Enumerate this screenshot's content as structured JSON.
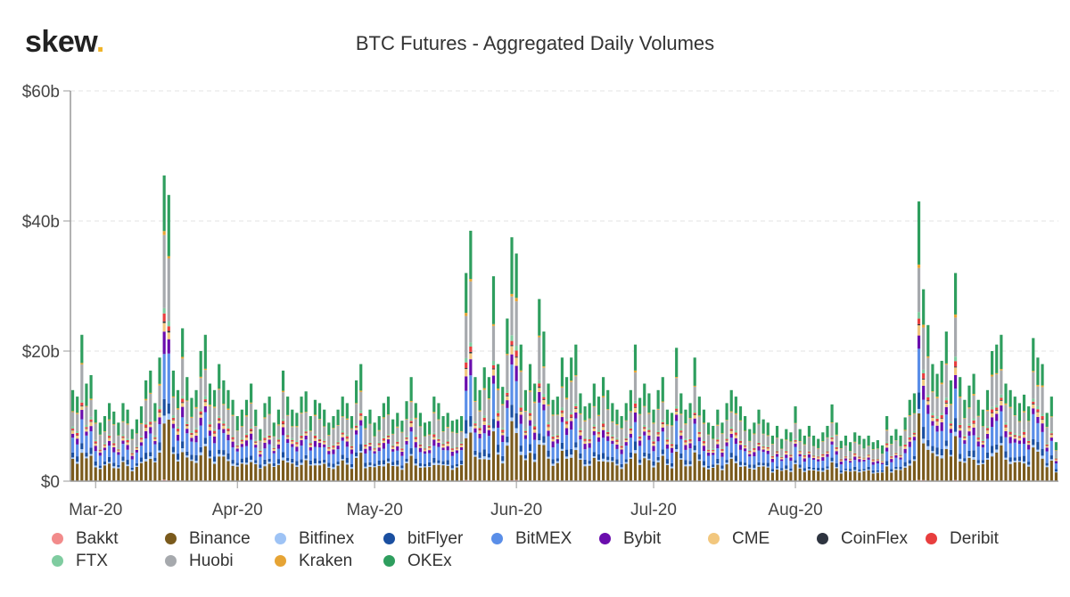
{
  "logo": {
    "text": "skew",
    "dot": "."
  },
  "chart_data": {
    "type": "bar",
    "stacked": true,
    "title": "BTC Futures - Aggregated Daily Volumes",
    "xlabel": "",
    "ylabel": "",
    "ylim": [
      0,
      60
    ],
    "unit": "$b",
    "yticks": [
      {
        "value": 0,
        "label": "$0"
      },
      {
        "value": 20,
        "label": "$20b"
      },
      {
        "value": 40,
        "label": "$40b"
      },
      {
        "value": 60,
        "label": "$60b"
      }
    ],
    "xticks": [
      {
        "index": 5,
        "label": "Mar-20"
      },
      {
        "index": 36,
        "label": "Apr-20"
      },
      {
        "index": 66,
        "label": "May-20"
      },
      {
        "index": 97,
        "label": "Jun-20"
      },
      {
        "index": 127,
        "label": "Jul-20"
      },
      {
        "index": 158,
        "label": "Aug-20"
      }
    ],
    "start_date": "2020-02-24",
    "totals": [
      14,
      13,
      22.5,
      15,
      16.3,
      11,
      9,
      10,
      12,
      10.7,
      9,
      12,
      11,
      8,
      9.5,
      11.5,
      15.5,
      17,
      12,
      19,
      47,
      44,
      17,
      14,
      23.5,
      16,
      12.8,
      14,
      20,
      22.5,
      15,
      14,
      18,
      15.5,
      14,
      12.5,
      10,
      11,
      12.5,
      15,
      11,
      8,
      12,
      13,
      9,
      11,
      17,
      13,
      11,
      10.5,
      13,
      13.8,
      10,
      12.5,
      12,
      11,
      9,
      10,
      11,
      13,
      12,
      10,
      15.5,
      18,
      10,
      11,
      9,
      10,
      12,
      13,
      9.5,
      10.5,
      9.3,
      12.3,
      16,
      12,
      10.5,
      9,
      9.2,
      13,
      12,
      10,
      10.5,
      9.3,
      9.5,
      10,
      32,
      38.5,
      16,
      14,
      17.5,
      16,
      31.5,
      18,
      14.5,
      25,
      37.5,
      35,
      21,
      14,
      18,
      15,
      28,
      23,
      15,
      12.5,
      13,
      19,
      16,
      19,
      21,
      13.5,
      11.5,
      12,
      15,
      13,
      16,
      14,
      12,
      11,
      10,
      12,
      14,
      21,
      12.8,
      15,
      13.5,
      11,
      14,
      16,
      11,
      10.5,
      20.5,
      13.5,
      11,
      12,
      19,
      13,
      11,
      9,
      8.5,
      11,
      9,
      12,
      14,
      13,
      11.5,
      10,
      8,
      9,
      11,
      9.5,
      9,
      7,
      8.5,
      6.5,
      8,
      7.5,
      11.5,
      8,
      7,
      8.5,
      7,
      6.5,
      7.5,
      8.5,
      11.8,
      9,
      6.2,
      7,
      6,
      7.5,
      7,
      6.5,
      7,
      6,
      6.3,
      5.5,
      10,
      7,
      8,
      7,
      9.8,
      12.5,
      13.5,
      43,
      29.5,
      24,
      18,
      16.5,
      18.5,
      23,
      15.5,
      32,
      16,
      12.5,
      14.7,
      16.5,
      12.5,
      11,
      14,
      20,
      21,
      22.5,
      15,
      14,
      13,
      12,
      13.3,
      11.5,
      22,
      19,
      18,
      10.5,
      13,
      6
    ],
    "series": [
      {
        "name": "Bakkt",
        "color": "#f28b8b",
        "share": 0.004
      },
      {
        "name": "Binance",
        "color": "#7a5a1c",
        "share": 0.215
      },
      {
        "name": "Bitfinex",
        "color": "#9ec3f5",
        "share": 0.02
      },
      {
        "name": "bitFlyer",
        "color": "#1a4fa0",
        "share": 0.05
      },
      {
        "name": "BitMEX",
        "color": "#5a8ee8",
        "share": 0.16
      },
      {
        "name": "Bybit",
        "color": "#6a0dad",
        "share": 0.055
      },
      {
        "name": "CME",
        "color": "#f2c77e",
        "share": 0.03
      },
      {
        "name": "CoinFlex",
        "color": "#2e3440",
        "share": 0.005
      },
      {
        "name": "Deribit",
        "color": "#e83e3e",
        "share": 0.02
      },
      {
        "name": "FTX",
        "color": "#7fcca0",
        "share": 0.02
      },
      {
        "name": "Huobi",
        "color": "#a6a9ad",
        "share": 0.2
      },
      {
        "name": "Kraken",
        "color": "#e6a435",
        "share": 0.011
      },
      {
        "name": "OKEx",
        "color": "#2e9e5e",
        "share": 0.21
      }
    ]
  }
}
